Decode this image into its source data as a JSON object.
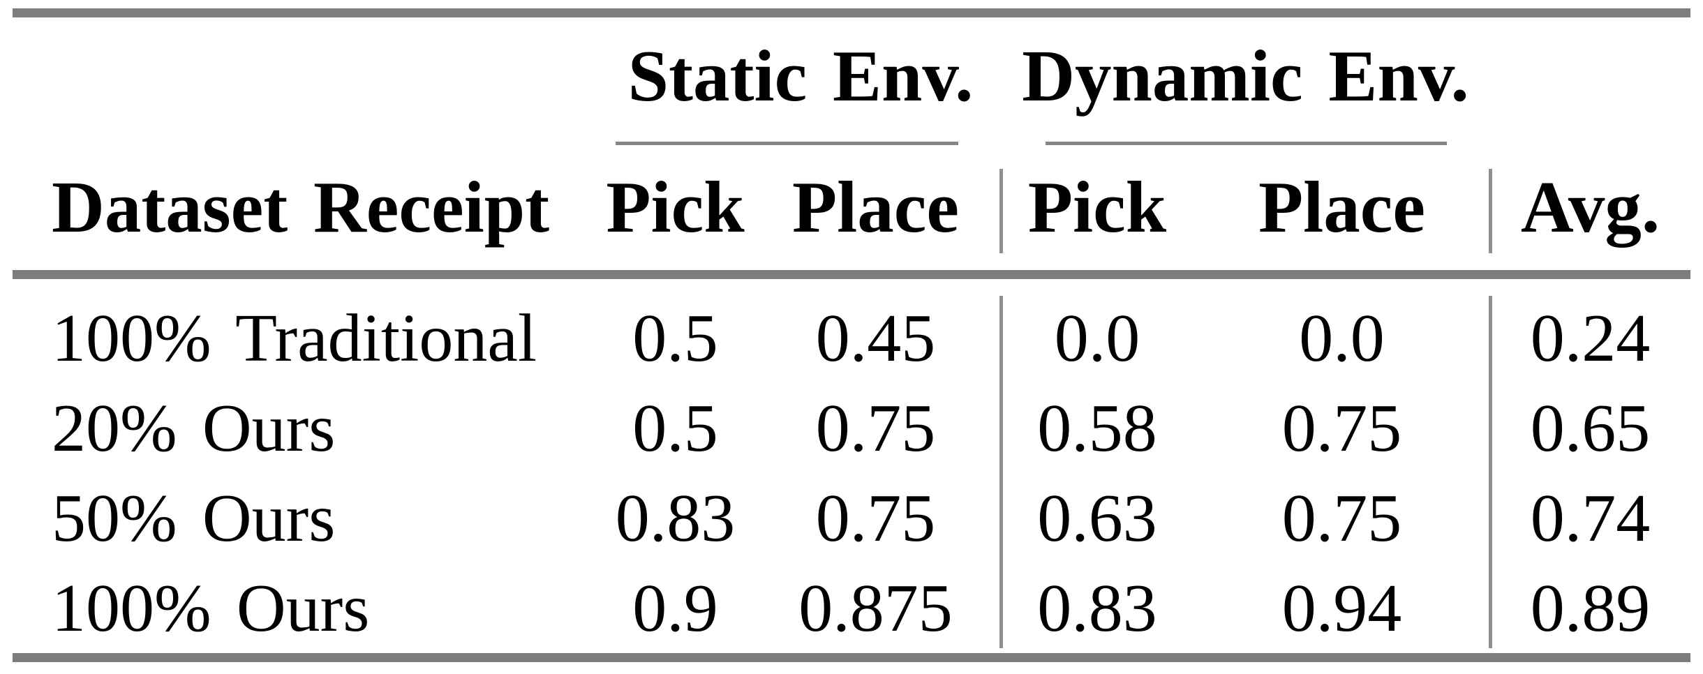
{
  "table": {
    "col_groups": [
      {
        "label": "Static Env.",
        "columns": [
          "Pick",
          "Place"
        ]
      },
      {
        "label": "Dynamic Env.",
        "columns": [
          "Pick",
          "Place"
        ]
      }
    ],
    "headers": [
      "Dataset Receipt",
      "Pick",
      "Place",
      "Pick",
      "Place",
      "Avg."
    ],
    "rows": [
      [
        "100% Traditional",
        "0.5",
        "0.45",
        "0.0",
        "0.0",
        "0.24"
      ],
      [
        "20% Ours",
        "0.5",
        "0.75",
        "0.58",
        "0.75",
        "0.65"
      ],
      [
        "50% Ours",
        "0.83",
        "0.75",
        "0.63",
        "0.75",
        "0.74"
      ],
      [
        "100% Ours",
        "0.9",
        "0.875",
        "0.83",
        "0.94",
        "0.89"
      ]
    ],
    "style": {
      "rule_color": "#7d7d7d",
      "cmidrule_color": "#858585",
      "divider_color": "#8f8f8f",
      "text_color": "#000000",
      "background": "#ffffff"
    }
  },
  "chart_data": {
    "type": "table",
    "title": "",
    "column_groups": [
      "",
      "Static Env.",
      "Static Env.",
      "Dynamic Env.",
      "Dynamic Env.",
      ""
    ],
    "columns": [
      "Dataset Receipt",
      "Static Env. Pick",
      "Static Env. Place",
      "Dynamic Env. Pick",
      "Dynamic Env. Place",
      "Avg."
    ],
    "rows": [
      [
        "100% Traditional",
        0.5,
        0.45,
        0.0,
        0.0,
        0.24
      ],
      [
        "20% Ours",
        0.5,
        0.75,
        0.58,
        0.75,
        0.65
      ],
      [
        "50% Ours",
        0.83,
        0.75,
        0.63,
        0.75,
        0.74
      ],
      [
        "100% Ours",
        0.9,
        0.875,
        0.83,
        0.94,
        0.89
      ]
    ]
  }
}
